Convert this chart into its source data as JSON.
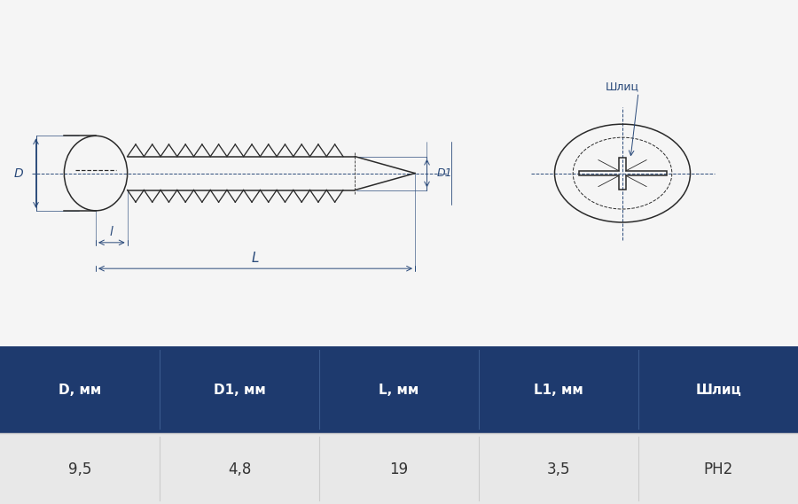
{
  "bg_color": "#f5f5f5",
  "drawing_bg": "#f0f0f0",
  "table_header_bg": "#1e3a6e",
  "table_row_bg": "#e8e8e8",
  "table_alt_row_bg": "#d8d8d8",
  "table_header_color": "#ffffff",
  "table_row_color": "#333333",
  "line_color": "#2a2a2a",
  "dim_color": "#2a4a7a",
  "headers": [
    "D, мм",
    "D1, мм",
    "L, мм",
    "L1, мм",
    "Шлиц"
  ],
  "values": [
    "9,5",
    "4,8",
    "19",
    "3,5",
    "PH2"
  ]
}
